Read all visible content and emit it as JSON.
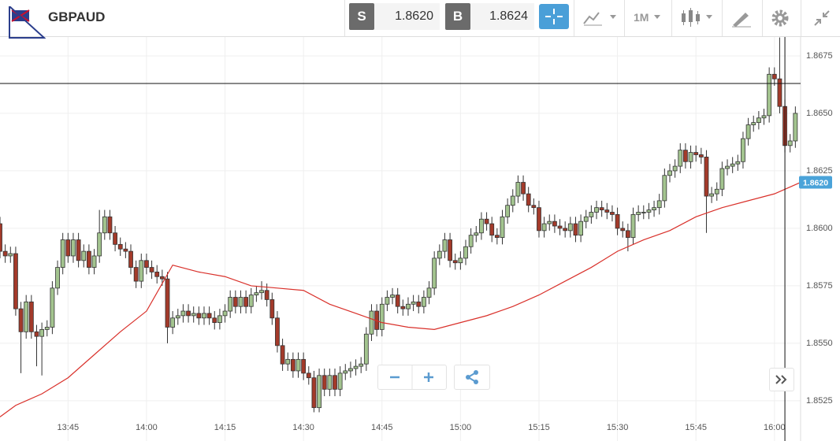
{
  "header": {
    "symbol": "GBPAUD",
    "sell_label": "S",
    "sell_price": "1.8620",
    "buy_label": "B",
    "buy_price": "1.8624",
    "timeframe": "1M"
  },
  "chart_data": {
    "type": "candlestick",
    "up_color": "#a3c48f",
    "down_color": "#a33a2a",
    "x": [
      "13:32",
      "13:33",
      "13:34",
      "13:35",
      "13:36",
      "13:37",
      "13:38",
      "13:39",
      "13:40",
      "13:41",
      "13:42",
      "13:43",
      "13:44",
      "13:45",
      "13:46",
      "13:47",
      "13:48",
      "13:49",
      "13:50",
      "13:51",
      "13:52",
      "13:53",
      "13:54",
      "13:55",
      "13:56",
      "13:57",
      "13:58",
      "13:59",
      "14:00",
      "14:01",
      "14:02",
      "14:03",
      "14:04",
      "14:05",
      "14:06",
      "14:07",
      "14:08",
      "14:09",
      "14:10",
      "14:11",
      "14:12",
      "14:13",
      "14:14",
      "14:15",
      "14:16",
      "14:17",
      "14:18",
      "14:19",
      "14:20",
      "14:21",
      "14:22",
      "14:23",
      "14:24",
      "14:25",
      "14:26",
      "14:27",
      "14:28",
      "14:29",
      "14:30",
      "14:31",
      "14:32",
      "14:33",
      "14:34",
      "14:35",
      "14:36",
      "14:37",
      "14:38",
      "14:39",
      "14:40",
      "14:41",
      "14:42",
      "14:43",
      "14:44",
      "14:45",
      "14:46",
      "14:47",
      "14:48",
      "14:49",
      "14:50",
      "14:51",
      "14:52",
      "14:53",
      "14:54",
      "14:55",
      "14:56",
      "14:57",
      "14:58",
      "14:59",
      "15:00",
      "15:01",
      "15:02",
      "15:03",
      "15:04",
      "15:05",
      "15:06",
      "15:07",
      "15:08",
      "15:09",
      "15:10",
      "15:11",
      "15:12",
      "15:13",
      "15:14",
      "15:15",
      "15:16",
      "15:17",
      "15:18",
      "15:19",
      "15:20",
      "15:21",
      "15:22",
      "15:23",
      "15:24",
      "15:25",
      "15:26",
      "15:27",
      "15:28",
      "15:29",
      "15:30",
      "15:31",
      "15:32",
      "15:33",
      "15:34",
      "15:35",
      "15:36",
      "15:37",
      "15:38",
      "15:39",
      "15:40",
      "15:41",
      "15:42",
      "15:43",
      "15:44",
      "15:45",
      "15:46",
      "15:47",
      "15:48",
      "15:49",
      "15:50",
      "15:51",
      "15:52",
      "15:53",
      "15:54",
      "15:55",
      "15:56",
      "15:57",
      "15:58",
      "15:59",
      "16:00",
      "16:01",
      "16:02",
      "16:03",
      "16:04"
    ],
    "open": [
      1.8602,
      1.859,
      1.8588,
      1.8589,
      1.8565,
      1.8555,
      1.8568,
      1.8555,
      1.8553,
      1.8556,
      1.8557,
      1.8574,
      1.8583,
      1.8595,
      1.8588,
      1.8595,
      1.8586,
      1.859,
      1.8583,
      1.8588,
      1.8598,
      1.8605,
      1.8598,
      1.8593,
      1.8591,
      1.859,
      1.8583,
      1.8577,
      1.8586,
      1.8583,
      1.8581,
      1.8579,
      1.8578,
      1.8557,
      1.8561,
      1.8562,
      1.8564,
      1.8562,
      1.8563,
      1.8561,
      1.8563,
      1.8561,
      1.8559,
      1.8562,
      1.8564,
      1.857,
      1.8566,
      1.857,
      1.8566,
      1.8571,
      1.8572,
      1.8573,
      1.8569,
      1.8561,
      1.8549,
      1.8541,
      1.8543,
      1.8538,
      1.8543,
      1.8537,
      1.8535,
      1.8522,
      1.8536,
      1.853,
      1.8536,
      1.853,
      1.8537,
      1.8538,
      1.8539,
      1.854,
      1.8541,
      1.8554,
      1.8564,
      1.8556,
      1.8567,
      1.857,
      1.8571,
      1.8566,
      1.8565,
      1.8567,
      1.8568,
      1.8566,
      1.857,
      1.8574,
      1.8587,
      1.859,
      1.8595,
      1.8586,
      1.8585,
      1.8587,
      1.8592,
      1.8597,
      1.8598,
      1.8604,
      1.8602,
      1.8597,
      1.8596,
      1.8605,
      1.861,
      1.8614,
      1.862,
      1.8615,
      1.861,
      1.8609,
      1.8599,
      1.8602,
      1.8603,
      1.8601,
      1.86,
      1.8599,
      1.8602,
      1.8597,
      1.8603,
      1.8605,
      1.8607,
      1.8609,
      1.8608,
      1.8607,
      1.8606,
      1.86,
      1.8599,
      1.8596,
      1.8606,
      1.8607,
      1.8607,
      1.8608,
      1.8609,
      1.8612,
      1.8623,
      1.8625,
      1.8627,
      1.8634,
      1.8629,
      1.8633,
      1.8632,
      1.8631,
      1.8614,
      1.8615,
      1.8617,
      1.8626,
      1.8627,
      1.8628,
      1.8629,
      1.8639,
      1.8645,
      1.8646,
      1.8648,
      1.8649,
      1.8667,
      1.8665,
      1.8653,
      1.8636,
      1.8638
    ],
    "high": [
      1.8605,
      1.8593,
      1.8592,
      1.8592,
      1.8568,
      1.8571,
      1.8571,
      1.8558,
      1.8559,
      1.856,
      1.8577,
      1.8586,
      1.8598,
      1.8598,
      1.8598,
      1.8598,
      1.8593,
      1.8593,
      1.8591,
      1.8608,
      1.8608,
      1.8608,
      1.8601,
      1.8596,
      1.8594,
      1.8593,
      1.8586,
      1.8589,
      1.8589,
      1.8586,
      1.8584,
      1.8582,
      1.8581,
      1.8564,
      1.8565,
      1.8567,
      1.8567,
      1.8566,
      1.8566,
      1.8566,
      1.8566,
      1.8564,
      1.8565,
      1.8567,
      1.8573,
      1.8573,
      1.8573,
      1.8573,
      1.8574,
      1.8575,
      1.8577,
      1.8576,
      1.8572,
      1.8564,
      1.8552,
      1.8546,
      1.8546,
      1.8546,
      1.8546,
      1.854,
      1.8538,
      1.8539,
      1.8539,
      1.8539,
      1.8539,
      1.854,
      1.8541,
      1.8542,
      1.8543,
      1.8544,
      1.8557,
      1.8567,
      1.8567,
      1.857,
      1.8573,
      1.8574,
      1.8574,
      1.8569,
      1.857,
      1.8571,
      1.8571,
      1.8573,
      1.8577,
      1.859,
      1.8593,
      1.8598,
      1.8598,
      1.8589,
      1.859,
      1.8595,
      1.86,
      1.8601,
      1.8607,
      1.8607,
      1.8605,
      1.86,
      1.8608,
      1.8613,
      1.8617,
      1.8623,
      1.8623,
      1.8618,
      1.8613,
      1.8612,
      1.8605,
      1.8606,
      1.8606,
      1.8604,
      1.8603,
      1.8605,
      1.8605,
      1.8606,
      1.8608,
      1.861,
      1.8612,
      1.8612,
      1.8611,
      1.861,
      1.8609,
      1.8603,
      1.8602,
      1.8609,
      1.861,
      1.861,
      1.8611,
      1.8612,
      1.8615,
      1.8626,
      1.8628,
      1.863,
      1.8637,
      1.8637,
      1.8636,
      1.8636,
      1.8635,
      1.8634,
      1.8618,
      1.862,
      1.8629,
      1.863,
      1.8631,
      1.8632,
      1.8642,
      1.8648,
      1.8649,
      1.8651,
      1.8652,
      1.867,
      1.867,
      1.8683,
      1.8656,
      1.8641,
      1.8653
    ],
    "low": [
      1.8587,
      1.8585,
      1.8585,
      1.8562,
      1.8537,
      1.8552,
      1.8552,
      1.854,
      1.8536,
      1.8553,
      1.8554,
      1.8571,
      1.858,
      1.8585,
      1.8585,
      1.8583,
      1.8583,
      1.858,
      1.858,
      1.8585,
      1.8595,
      1.8595,
      1.859,
      1.8588,
      1.8587,
      1.858,
      1.8574,
      1.8574,
      1.858,
      1.8578,
      1.8576,
      1.8575,
      1.855,
      1.8554,
      1.8558,
      1.8559,
      1.8559,
      1.8559,
      1.8558,
      1.8558,
      1.8558,
      1.8556,
      1.8556,
      1.8559,
      1.8561,
      1.8563,
      1.8563,
      1.8563,
      1.8563,
      1.8568,
      1.8569,
      1.8566,
      1.8558,
      1.8546,
      1.8538,
      1.8538,
      1.8535,
      1.8535,
      1.8534,
      1.8532,
      1.852,
      1.852,
      1.8527,
      1.8527,
      1.8527,
      1.8527,
      1.8534,
      1.8535,
      1.8536,
      1.8537,
      1.8538,
      1.8551,
      1.8553,
      1.8553,
      1.8564,
      1.8567,
      1.8563,
      1.8562,
      1.8562,
      1.8564,
      1.8563,
      1.8563,
      1.8567,
      1.8571,
      1.8584,
      1.8587,
      1.8583,
      1.8582,
      1.8582,
      1.8584,
      1.8589,
      1.8594,
      1.8595,
      1.8599,
      1.8594,
      1.8593,
      1.8593,
      1.8602,
      1.8607,
      1.8611,
      1.8612,
      1.8607,
      1.8606,
      1.8596,
      1.8596,
      1.8599,
      1.8598,
      1.8597,
      1.8596,
      1.8596,
      1.8594,
      1.8594,
      1.86,
      1.8602,
      1.8604,
      1.8605,
      1.8604,
      1.8603,
      1.8597,
      1.8596,
      1.859,
      1.8593,
      1.8603,
      1.8604,
      1.8604,
      1.8605,
      1.8606,
      1.8609,
      1.862,
      1.8622,
      1.8624,
      1.8626,
      1.8626,
      1.8629,
      1.8628,
      1.8598,
      1.8611,
      1.8612,
      1.8614,
      1.8623,
      1.8624,
      1.8625,
      1.8626,
      1.8636,
      1.8642,
      1.8643,
      1.8645,
      1.8646,
      1.8662,
      1.865,
      1.8633,
      1.8633,
      1.8635
    ],
    "close": [
      1.859,
      1.8588,
      1.8589,
      1.8565,
      1.8555,
      1.8568,
      1.8555,
      1.8553,
      1.8556,
      1.8557,
      1.8574,
      1.8583,
      1.8595,
      1.8588,
      1.8595,
      1.8586,
      1.859,
      1.8583,
      1.8588,
      1.8598,
      1.8605,
      1.8598,
      1.8593,
      1.8591,
      1.859,
      1.8583,
      1.8577,
      1.8586,
      1.8583,
      1.8581,
      1.8579,
      1.8578,
      1.8557,
      1.8561,
      1.8562,
      1.8564,
      1.8562,
      1.8563,
      1.8561,
      1.8563,
      1.8561,
      1.8559,
      1.8562,
      1.8564,
      1.857,
      1.8566,
      1.857,
      1.8566,
      1.8571,
      1.8572,
      1.8573,
      1.8569,
      1.8561,
      1.8549,
      1.8541,
      1.8543,
      1.8538,
      1.8543,
      1.8537,
      1.8535,
      1.8522,
      1.8536,
      1.853,
      1.8536,
      1.853,
      1.8537,
      1.8538,
      1.8539,
      1.854,
      1.8541,
      1.8554,
      1.8564,
      1.8556,
      1.8567,
      1.857,
      1.8571,
      1.8566,
      1.8565,
      1.8567,
      1.8568,
      1.8566,
      1.857,
      1.8574,
      1.8587,
      1.859,
      1.8595,
      1.8586,
      1.8585,
      1.8587,
      1.8592,
      1.8597,
      1.8598,
      1.8604,
      1.8602,
      1.8597,
      1.8596,
      1.8605,
      1.861,
      1.8614,
      1.862,
      1.8615,
      1.861,
      1.8609,
      1.8599,
      1.8602,
      1.8603,
      1.8601,
      1.86,
      1.8599,
      1.8602,
      1.8597,
      1.8603,
      1.8605,
      1.8607,
      1.8609,
      1.8608,
      1.8607,
      1.8606,
      1.86,
      1.8599,
      1.8596,
      1.8606,
      1.8607,
      1.8607,
      1.8608,
      1.8609,
      1.8612,
      1.8623,
      1.8625,
      1.8627,
      1.8634,
      1.8629,
      1.8633,
      1.8632,
      1.8631,
      1.8614,
      1.8615,
      1.8617,
      1.8626,
      1.8627,
      1.8628,
      1.8629,
      1.8639,
      1.8645,
      1.8646,
      1.8648,
      1.8649,
      1.8667,
      1.8665,
      1.8653,
      1.8636,
      1.8638,
      1.865
    ],
    "overlay": {
      "color": "#d9302a",
      "x": [
        "13:32",
        "13:35",
        "13:40",
        "13:45",
        "13:50",
        "13:55",
        "14:00",
        "14:05",
        "14:10",
        "14:15",
        "14:20",
        "14:25",
        "14:30",
        "14:35",
        "14:40",
        "14:45",
        "14:50",
        "14:55",
        "15:00",
        "15:05",
        "15:10",
        "15:15",
        "15:20",
        "15:25",
        "15:30",
        "15:35",
        "15:40",
        "15:45",
        "15:50",
        "15:55",
        "16:00",
        "16:05"
      ],
      "values": [
        1.8518,
        1.8523,
        1.8528,
        1.8535,
        1.8545,
        1.8555,
        1.8564,
        1.8584,
        1.8581,
        1.8579,
        1.8575,
        1.8574,
        1.8573,
        1.8567,
        1.8563,
        1.8559,
        1.8557,
        1.8556,
        1.8559,
        1.8562,
        1.8566,
        1.8571,
        1.8577,
        1.8583,
        1.859,
        1.8595,
        1.8599,
        1.8605,
        1.8609,
        1.8612,
        1.8615,
        1.862
      ],
      "last_label": "1.8620",
      "tag_color": "#4aa3d9"
    },
    "crosshair": {
      "x": "16:02",
      "y": 1.8663
    },
    "xlim": [
      "13:32",
      "16:05"
    ],
    "xticks": [
      "13:45",
      "14:00",
      "14:15",
      "14:30",
      "14:45",
      "15:00",
      "15:15",
      "15:30",
      "15:45",
      "16:00"
    ],
    "ylim": [
      1.85075,
      1.86832
    ],
    "yticks": [
      1.8525,
      {
        "value": 1.855,
        "label": "1.8550"
      },
      1.8575,
      {
        "value": 1.86,
        "label": "1.8600"
      },
      1.8625,
      {
        "value": 1.865,
        "label": "1.8650"
      },
      1.8675
    ],
    "grid": true
  }
}
